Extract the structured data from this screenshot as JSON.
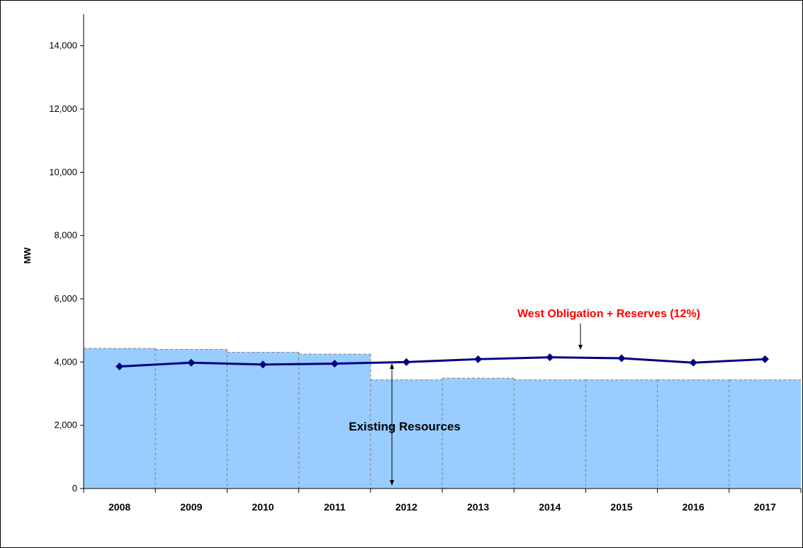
{
  "chart_data": {
    "type": "bar",
    "title": "",
    "xlabel": "",
    "ylabel": "MW",
    "ylim": [
      0,
      15000
    ],
    "yticks": [
      0,
      2000,
      4000,
      6000,
      8000,
      10000,
      12000,
      14000
    ],
    "ytick_labels": [
      "0",
      "2,000",
      "4,000",
      "6,000",
      "8,000",
      "10,000",
      "12,000",
      "14,000"
    ],
    "grid": false,
    "categories": [
      "2008",
      "2009",
      "2010",
      "2011",
      "2012",
      "2013",
      "2014",
      "2015",
      "2016",
      "2017"
    ],
    "series": [
      {
        "name": "Existing Resources",
        "kind": "bar",
        "color": "#99ccff",
        "values": [
          4430,
          4400,
          4310,
          4250,
          3440,
          3490,
          3440,
          3440,
          3440,
          3440
        ]
      },
      {
        "name": "West Obligation + Reserves (12%)",
        "kind": "line",
        "color": "#000080",
        "values": [
          3860,
          3980,
          3920,
          3950,
          4000,
          4090,
          4150,
          4120,
          3980,
          4090
        ]
      }
    ],
    "annotations": [
      {
        "text": "West Obligation + Reserves (12%)",
        "color": "#ff0000"
      },
      {
        "text": "Existing Resources",
        "color": "#000000"
      }
    ]
  }
}
